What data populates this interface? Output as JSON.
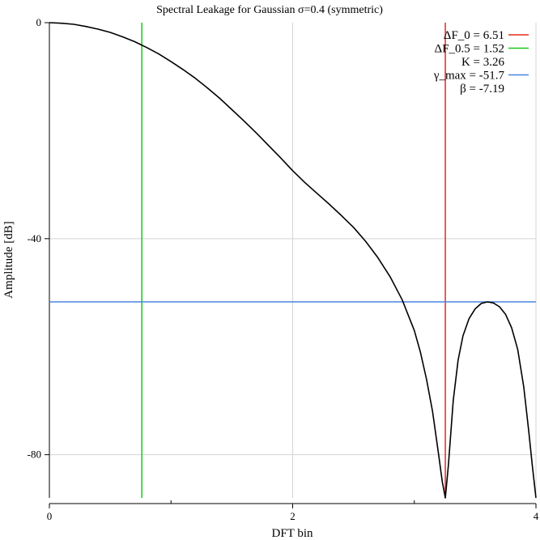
{
  "chart_data": {
    "type": "line",
    "title": "Spectral Leakage for Gaussian σ=0.4 (symmetric)",
    "xlabel": "DFT bin",
    "ylabel": "Amplitude [dB]",
    "xlim": [
      0,
      4
    ],
    "ylim": [
      -88,
      0
    ],
    "x_major_ticks": [
      0,
      2,
      4
    ],
    "x_minor_ticks": [
      1,
      3
    ],
    "x_tick_labels": [
      "0",
      "2",
      "4"
    ],
    "y_ticks": [
      0,
      -40,
      -80
    ],
    "y_tick_labels": [
      "0",
      "-40",
      "-80"
    ],
    "grid": true,
    "legend_position": "top-right",
    "series": [
      {
        "color": "#000000",
        "x": [
          0,
          0.1,
          0.2,
          0.3,
          0.4,
          0.5,
          0.6,
          0.7,
          0.8,
          0.9,
          1.0,
          1.1,
          1.2,
          1.3,
          1.4,
          1.5,
          1.6,
          1.7,
          1.8,
          1.9,
          2.0,
          2.1,
          2.2,
          2.3,
          2.4,
          2.5,
          2.6,
          2.7,
          2.8,
          2.9,
          3.0,
          3.05,
          3.1,
          3.15,
          3.2,
          3.23,
          3.255,
          3.28,
          3.32,
          3.36,
          3.4,
          3.45,
          3.5,
          3.55,
          3.6,
          3.65,
          3.7,
          3.75,
          3.8,
          3.85,
          3.9,
          3.94,
          3.97,
          4.0
        ],
        "y": [
          0,
          -0.1,
          -0.3,
          -0.7,
          -1.2,
          -1.8,
          -2.6,
          -3.5,
          -4.6,
          -5.8,
          -7.2,
          -8.7,
          -10.3,
          -12.1,
          -14.0,
          -16.1,
          -18.2,
          -20.4,
          -22.7,
          -25.0,
          -27.4,
          -29.6,
          -31.6,
          -33.6,
          -35.7,
          -37.9,
          -40.5,
          -43.5,
          -47.0,
          -51.3,
          -57.0,
          -61.0,
          -66.0,
          -72.0,
          -80.0,
          -85.0,
          -88.0,
          -82.0,
          -70.0,
          -62.5,
          -58.0,
          -54.8,
          -53.0,
          -52.0,
          -51.7,
          -51.9,
          -52.6,
          -54.0,
          -56.5,
          -60.5,
          -67.5,
          -75.5,
          -82.0,
          -88.0
        ]
      }
    ],
    "markers": [
      {
        "label": "ΔF_0 = 6.51",
        "color": "#e8281e",
        "orientation": "vertical",
        "value": 3.255
      },
      {
        "label": "ΔF_0.5 = 1.52",
        "color": "#19c819",
        "orientation": "vertical",
        "value": 0.76
      },
      {
        "label": "K = 3.26"
      },
      {
        "label": "γ_max = -51.7",
        "color": "#4a86e0",
        "orientation": "horizontal",
        "value": -51.7
      },
      {
        "label": "β = -7.19"
      }
    ]
  }
}
